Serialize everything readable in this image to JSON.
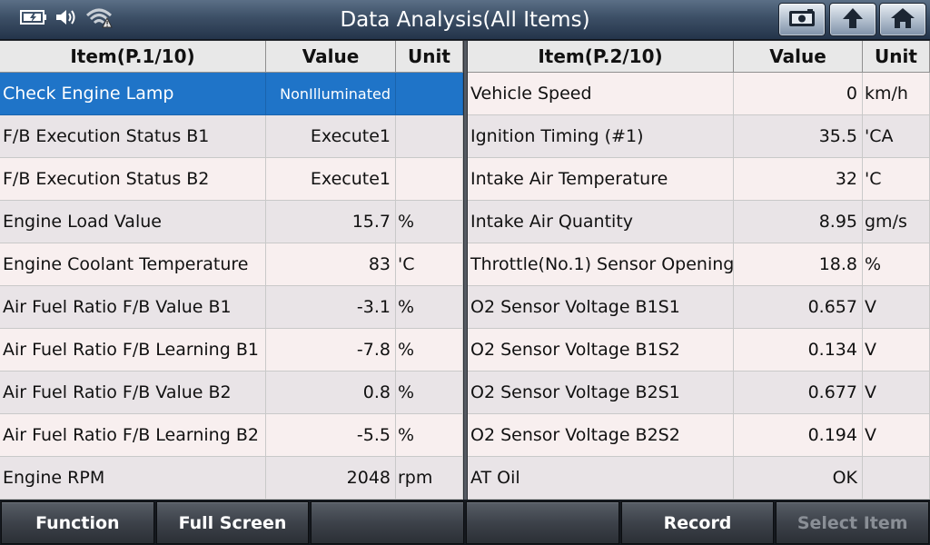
{
  "header": {
    "title": "Data Analysis(All Items)"
  },
  "left_table": {
    "columns": {
      "item": "Item(P.1/10)",
      "value": "Value",
      "unit": "Unit"
    },
    "rows": [
      {
        "item": "Check Engine Lamp",
        "value": "NonIlluminated",
        "unit": ""
      },
      {
        "item": "F/B Execution Status B1",
        "value": "Execute1",
        "unit": ""
      },
      {
        "item": "F/B Execution Status B2",
        "value": "Execute1",
        "unit": ""
      },
      {
        "item": "Engine Load Value",
        "value": "15.7",
        "unit": "%"
      },
      {
        "item": "Engine Coolant Temperature",
        "value": "83",
        "unit": "'C"
      },
      {
        "item": "Air Fuel Ratio F/B Value B1",
        "value": "-3.1",
        "unit": "%"
      },
      {
        "item": "Air Fuel Ratio F/B Learning B1",
        "value": "-7.8",
        "unit": "%"
      },
      {
        "item": "Air Fuel Ratio F/B Value B2",
        "value": "0.8",
        "unit": "%"
      },
      {
        "item": "Air Fuel Ratio F/B Learning B2",
        "value": "-5.5",
        "unit": "%"
      },
      {
        "item": "Engine RPM",
        "value": "2048",
        "unit": "rpm"
      }
    ]
  },
  "right_table": {
    "columns": {
      "item": "Item(P.2/10)",
      "value": "Value",
      "unit": "Unit"
    },
    "rows": [
      {
        "item": "Vehicle Speed",
        "value": "0",
        "unit": "km/h"
      },
      {
        "item": "Ignition Timing (#1)",
        "value": "35.5",
        "unit": "'CA"
      },
      {
        "item": "Intake Air Temperature",
        "value": "32",
        "unit": "'C"
      },
      {
        "item": "Intake Air Quantity",
        "value": "8.95",
        "unit": "gm/s"
      },
      {
        "item": "Throttle(No.1) Sensor Opening",
        "value": "18.8",
        "unit": "%"
      },
      {
        "item": "O2 Sensor Voltage B1S1",
        "value": "0.657",
        "unit": "V"
      },
      {
        "item": "O2 Sensor Voltage B1S2",
        "value": "0.134",
        "unit": "V"
      },
      {
        "item": "O2 Sensor Voltage B2S1",
        "value": "0.677",
        "unit": "V"
      },
      {
        "item": "O2 Sensor Voltage B2S2",
        "value": "0.194",
        "unit": "V"
      },
      {
        "item": "AT Oil",
        "value": "OK",
        "unit": ""
      }
    ]
  },
  "bottom_bar": {
    "function_label": "Function",
    "fullscreen_label": "Full Screen",
    "empty1_label": "",
    "empty2_label": "",
    "record_label": "Record",
    "select_item_label": "Select Item"
  },
  "colors": {
    "selected_row": "#1f74c8",
    "title_bar": "#3c4f66"
  },
  "icons": [
    "battery-icon",
    "speaker-icon",
    "wifi-icon",
    "screenshot-icon",
    "back-arrow-icon",
    "home-icon"
  ]
}
